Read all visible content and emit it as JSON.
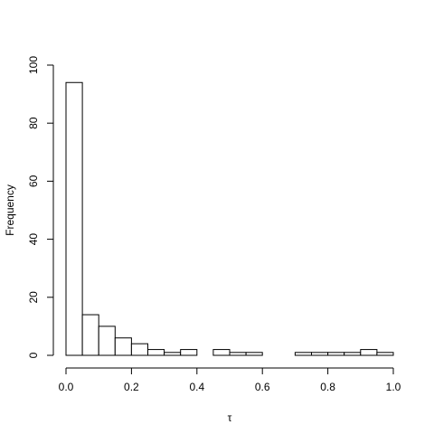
{
  "chart_data": {
    "type": "bar",
    "title": "",
    "xlabel": "τ",
    "ylabel": "Frequency",
    "xlim": [
      0,
      1
    ],
    "ylim": [
      0,
      100
    ],
    "bin_width": 0.05,
    "bin_starts": [
      0.0,
      0.05,
      0.1,
      0.15,
      0.2,
      0.25,
      0.3,
      0.35,
      0.4,
      0.45,
      0.5,
      0.55,
      0.6,
      0.65,
      0.7,
      0.75,
      0.8,
      0.85,
      0.9,
      0.95
    ],
    "values": [
      94,
      14,
      10,
      6,
      4,
      2,
      1,
      2,
      0,
      2,
      1,
      1,
      0,
      0,
      1,
      1,
      1,
      1,
      2,
      1
    ],
    "x_ticks": [
      0.0,
      0.2,
      0.4,
      0.6,
      0.8,
      1.0
    ],
    "x_tick_labels": [
      "0.0",
      "0.2",
      "0.4",
      "0.6",
      "0.8",
      "1.0"
    ],
    "y_ticks": [
      0,
      20,
      40,
      60,
      80,
      100
    ],
    "y_tick_labels": [
      "0",
      "20",
      "40",
      "60",
      "80",
      "100"
    ],
    "grid": false
  }
}
